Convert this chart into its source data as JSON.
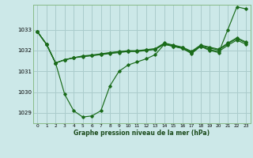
{
  "title": "Graphe pression niveau de la mer (hPa)",
  "bg_color": "#cce8e8",
  "grid_color": "#aacccc",
  "line_color": "#1a6b1a",
  "x_ticks": [
    0,
    1,
    2,
    3,
    4,
    5,
    6,
    7,
    8,
    9,
    10,
    11,
    12,
    13,
    14,
    15,
    16,
    17,
    18,
    19,
    20,
    21,
    22,
    23
  ],
  "ylim": [
    1028.5,
    1034.2
  ],
  "yticks": [
    1029,
    1030,
    1031,
    1032,
    1033
  ],
  "series": [
    [
      1032.9,
      1032.3,
      1031.4,
      1029.9,
      1029.1,
      1028.8,
      1028.85,
      1029.1,
      1030.3,
      1031.0,
      1031.3,
      1031.45,
      1031.6,
      1031.8,
      1032.3,
      1032.2,
      1032.1,
      1031.9,
      1032.2,
      1032.0,
      1031.9,
      1033.0,
      1034.1,
      1034.0
    ],
    [
      1032.9,
      1032.3,
      1031.4,
      1031.55,
      1031.65,
      1031.7,
      1031.75,
      1031.8,
      1031.85,
      1031.9,
      1031.95,
      1031.95,
      1032.0,
      1032.05,
      1032.3,
      1032.2,
      1032.1,
      1031.85,
      1032.2,
      1032.05,
      1031.95,
      1032.25,
      1032.5,
      1032.3
    ],
    [
      1032.9,
      1032.3,
      1031.4,
      1031.55,
      1031.65,
      1031.72,
      1031.76,
      1031.82,
      1031.88,
      1031.93,
      1031.97,
      1031.97,
      1032.02,
      1032.07,
      1032.33,
      1032.23,
      1032.13,
      1031.93,
      1032.23,
      1032.12,
      1032.02,
      1032.32,
      1032.57,
      1032.37
    ],
    [
      1032.9,
      1032.3,
      1031.4,
      1031.55,
      1031.65,
      1031.74,
      1031.78,
      1031.84,
      1031.9,
      1031.95,
      1031.99,
      1031.99,
      1032.04,
      1032.09,
      1032.36,
      1032.26,
      1032.16,
      1031.96,
      1032.26,
      1032.16,
      1032.06,
      1032.36,
      1032.61,
      1032.41
    ]
  ]
}
